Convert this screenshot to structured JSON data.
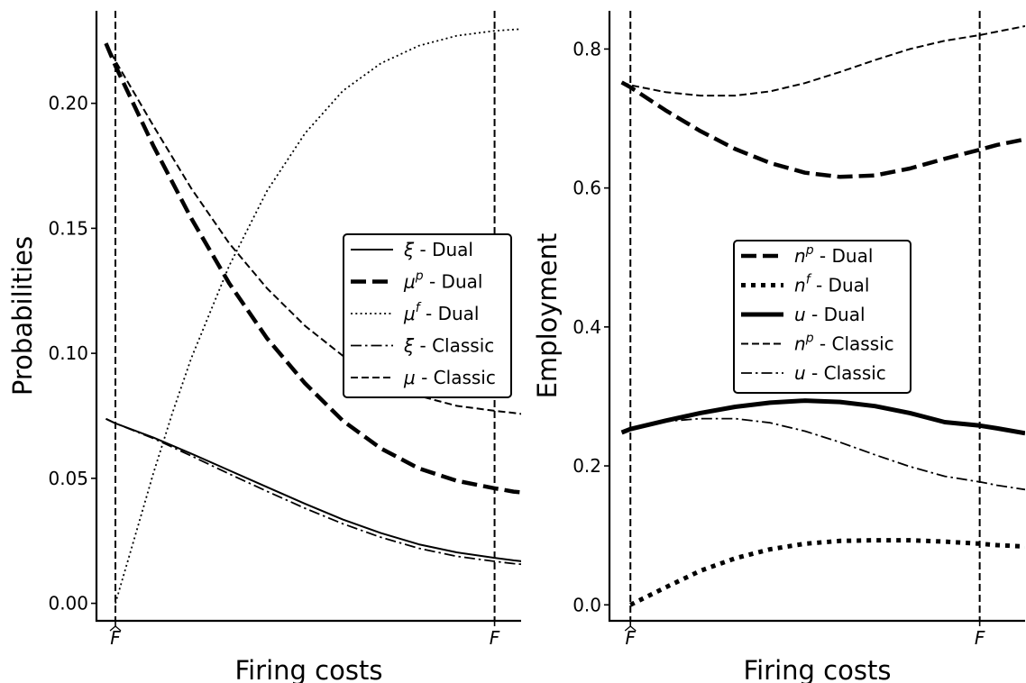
{
  "chart_data": [
    {
      "type": "line",
      "title": "",
      "xlabel": "Firing costs",
      "ylabel": "Probabilities",
      "xlim": [
        -0.05,
        1.07
      ],
      "ylim": [
        -0.007,
        0.237
      ],
      "xticks": [
        {
          "v": 0,
          "label": "F̂",
          "hat": true
        },
        {
          "v": 1,
          "label": "F",
          "hat": false
        }
      ],
      "yticks": [
        {
          "v": 0.0,
          "label": "0.00"
        },
        {
          "v": 0.05,
          "label": "0.05"
        },
        {
          "v": 0.1,
          "label": "0.10"
        },
        {
          "v": 0.15,
          "label": "0.15"
        },
        {
          "v": 0.2,
          "label": "0.20"
        }
      ],
      "vlines": [
        0,
        1
      ],
      "grid": false,
      "legend_position": "center-right",
      "series": [
        {
          "name": "- Dual",
          "sym": "ξ",
          "sup": "",
          "style": "solid",
          "width": 2,
          "x": [
            -0.025,
            0,
            0.1,
            0.2,
            0.3,
            0.4,
            0.5,
            0.6,
            0.7,
            0.8,
            0.9,
            1.0,
            1.05,
            1.105
          ],
          "y": [
            0.0738,
            0.072,
            0.0663,
            0.0599,
            0.0532,
            0.0465,
            0.0398,
            0.0335,
            0.0281,
            0.0236,
            0.0204,
            0.0182,
            0.0172,
            0.0163
          ]
        },
        {
          "name": "- Dual",
          "sym": "μ",
          "sup": "p",
          "style": "dashed-thick",
          "width": 4.5,
          "x": [
            -0.025,
            0,
            0.1,
            0.2,
            0.3,
            0.4,
            0.5,
            0.6,
            0.7,
            0.8,
            0.9,
            1.0,
            1.05,
            1.095
          ],
          "y": [
            0.224,
            0.215,
            0.183,
            0.154,
            0.128,
            0.106,
            0.088,
            0.073,
            0.062,
            0.054,
            0.049,
            0.046,
            0.0447,
            0.044
          ]
        },
        {
          "name": "- Dual",
          "sym": "μ",
          "sup": "f",
          "style": "dotted",
          "width": 1.8,
          "x": [
            0,
            0.05,
            0.1,
            0.15,
            0.2,
            0.3,
            0.4,
            0.5,
            0.6,
            0.7,
            0.8,
            0.9,
            1.0,
            1.05,
            1.105
          ],
          "y": [
            0.0,
            0.026,
            0.052,
            0.076,
            0.098,
            0.135,
            0.165,
            0.188,
            0.205,
            0.216,
            0.223,
            0.227,
            0.229,
            0.2295,
            0.23
          ]
        },
        {
          "name": "- Classic",
          "sym": "ξ",
          "sup": "",
          "style": "dashdot",
          "width": 1.8,
          "x": [
            -0.025,
            0,
            0.1,
            0.2,
            0.3,
            0.4,
            0.5,
            0.6,
            0.7,
            0.8,
            0.9,
            1.0,
            1.05,
            1.105
          ],
          "y": [
            0.0738,
            0.072,
            0.066,
            0.059,
            0.0518,
            0.0448,
            0.038,
            0.0318,
            0.0264,
            0.022,
            0.0188,
            0.0168,
            0.0159,
            0.0152
          ]
        },
        {
          "name": "- Classic",
          "sym": "μ",
          "sup": "",
          "style": "dashed",
          "width": 2,
          "x": [
            -0.025,
            0,
            0.1,
            0.2,
            0.3,
            0.4,
            0.5,
            0.6,
            0.7,
            0.8,
            0.9,
            1.0,
            1.05,
            1.105
          ],
          "y": [
            0.224,
            0.217,
            0.191,
            0.166,
            0.144,
            0.126,
            0.111,
            0.099,
            0.09,
            0.083,
            0.079,
            0.077,
            0.0762,
            0.075
          ]
        }
      ]
    },
    {
      "type": "line",
      "title": "",
      "xlabel": "Firing costs",
      "ylabel": "Employment",
      "xlim": [
        -0.06,
        1.13
      ],
      "ylim": [
        -0.023,
        0.855
      ],
      "xticks": [
        {
          "v": 0,
          "label": "F̂",
          "hat": true
        },
        {
          "v": 1,
          "label": "F",
          "hat": false
        }
      ],
      "yticks": [
        {
          "v": 0.0,
          "label": "0.0"
        },
        {
          "v": 0.2,
          "label": "0.2"
        },
        {
          "v": 0.4,
          "label": "0.4"
        },
        {
          "v": 0.6,
          "label": "0.6"
        },
        {
          "v": 0.8,
          "label": "0.8"
        }
      ],
      "vlines": [
        0,
        1
      ],
      "grid": false,
      "legend_position": "center",
      "series": [
        {
          "name": "- Dual",
          "sym": "n",
          "sup": "p",
          "style": "dashed-thick",
          "width": 4.5,
          "x": [
            -0.025,
            0,
            0.1,
            0.2,
            0.3,
            0.4,
            0.5,
            0.6,
            0.7,
            0.8,
            0.9,
            1.0,
            1.05,
            1.13
          ],
          "y": [
            0.752,
            0.745,
            0.712,
            0.682,
            0.656,
            0.636,
            0.622,
            0.616,
            0.618,
            0.628,
            0.642,
            0.655,
            0.662,
            0.67
          ]
        },
        {
          "name": "- Dual",
          "sym": "n",
          "sup": "f",
          "style": "dotted-thick",
          "width": 5,
          "x": [
            0,
            0.1,
            0.2,
            0.3,
            0.4,
            0.5,
            0.6,
            0.7,
            0.8,
            0.9,
            1.0,
            1.05,
            1.13
          ],
          "y": [
            0.0,
            0.025,
            0.049,
            0.067,
            0.08,
            0.088,
            0.092,
            0.093,
            0.093,
            0.091,
            0.088,
            0.086,
            0.084
          ]
        },
        {
          "name": "- Dual",
          "sym": "u",
          "sup": "",
          "style": "solid-thick",
          "width": 5,
          "x": [
            -0.025,
            0,
            0.1,
            0.2,
            0.3,
            0.4,
            0.5,
            0.6,
            0.7,
            0.8,
            0.9,
            1.0,
            1.05,
            1.13
          ],
          "y": [
            0.248,
            0.253,
            0.265,
            0.276,
            0.285,
            0.291,
            0.294,
            0.292,
            0.286,
            0.276,
            0.263,
            0.258,
            0.254,
            0.247
          ]
        },
        {
          "name": "- Classic",
          "sym": "n",
          "sup": "p",
          "style": "dashed",
          "width": 2,
          "x": [
            -0.025,
            0,
            0.1,
            0.2,
            0.3,
            0.4,
            0.5,
            0.6,
            0.7,
            0.8,
            0.9,
            1.0,
            1.05,
            1.13
          ],
          "y": [
            0.752,
            0.748,
            0.738,
            0.733,
            0.733,
            0.739,
            0.751,
            0.767,
            0.784,
            0.8,
            0.812,
            0.82,
            0.825,
            0.833
          ]
        },
        {
          "name": "- Classic",
          "sym": "u",
          "sup": "",
          "style": "dashdot",
          "width": 1.8,
          "x": [
            -0.025,
            0,
            0.1,
            0.2,
            0.3,
            0.4,
            0.5,
            0.6,
            0.7,
            0.8,
            0.9,
            1.0,
            1.05,
            1.13
          ],
          "y": [
            0.248,
            0.253,
            0.264,
            0.268,
            0.268,
            0.262,
            0.25,
            0.234,
            0.216,
            0.199,
            0.185,
            0.177,
            0.172,
            0.166
          ]
        }
      ]
    }
  ]
}
